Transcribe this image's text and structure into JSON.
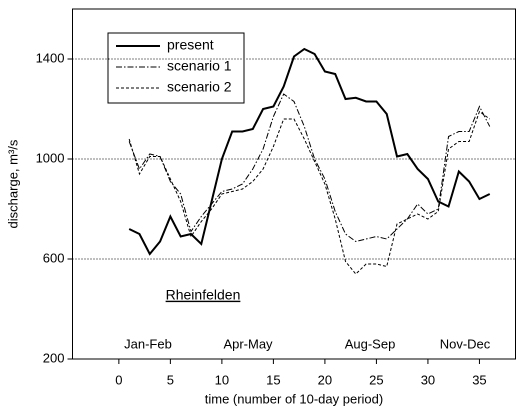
{
  "chart_data": {
    "type": "line",
    "x_label": "time (number of 10-day period)",
    "y_label": "discharge, m³/s",
    "annotations": [
      "Jan-Feb",
      "Apr-May",
      "Aug-Sep",
      "Nov-Dec"
    ],
    "location": "Rheinfelden",
    "x": [
      1,
      2,
      3,
      4,
      5,
      6,
      7,
      8,
      9,
      10,
      11,
      12,
      13,
      14,
      15,
      16,
      17,
      18,
      19,
      20,
      21,
      22,
      23,
      24,
      25,
      26,
      27,
      28,
      29,
      30,
      31,
      32,
      33,
      34,
      35,
      36
    ],
    "series": [
      {
        "name": "present",
        "color": "#000000",
        "dash": "none",
        "width": 2,
        "values": [
          720,
          700,
          620,
          670,
          770,
          690,
          700,
          660,
          830,
          1000,
          1110,
          1110,
          1120,
          1200,
          1210,
          1290,
          1410,
          1440,
          1420,
          1350,
          1340,
          1240,
          1245,
          1230,
          1230,
          1180,
          1010,
          1020,
          960,
          920,
          830,
          810,
          950,
          910,
          840,
          860
        ]
      },
      {
        "name": "scenario 1",
        "color": "#000000",
        "dash": "6,2,1.5,2",
        "width": 1,
        "values": [
          1070,
          960,
          1020,
          1010,
          910,
          860,
          710,
          770,
          820,
          870,
          880,
          900,
          960,
          1040,
          1170,
          1260,
          1230,
          1130,
          1000,
          920,
          790,
          700,
          670,
          680,
          690,
          680,
          720,
          760,
          820,
          780,
          800,
          1090,
          1110,
          1110,
          1210,
          1130
        ]
      },
      {
        "name": "scenario 2",
        "color": "#000000",
        "dash": "3,2",
        "width": 1,
        "values": [
          1080,
          940,
          1010,
          1010,
          920,
          830,
          690,
          750,
          800,
          860,
          870,
          880,
          910,
          960,
          1050,
          1160,
          1160,
          1080,
          990,
          900,
          760,
          590,
          540,
          580,
          580,
          570,
          740,
          760,
          780,
          760,
          790,
          1040,
          1070,
          1070,
          1190,
          1160
        ]
      }
    ],
    "xlim": [
      -4.5,
      38.5
    ],
    "xticks": [
      0,
      5,
      10,
      15,
      20,
      25,
      30,
      35
    ],
    "ylim": [
      200,
      1600
    ],
    "yticks": [
      200,
      600,
      1000,
      1400
    ],
    "grid": true,
    "legend": "upper left"
  }
}
